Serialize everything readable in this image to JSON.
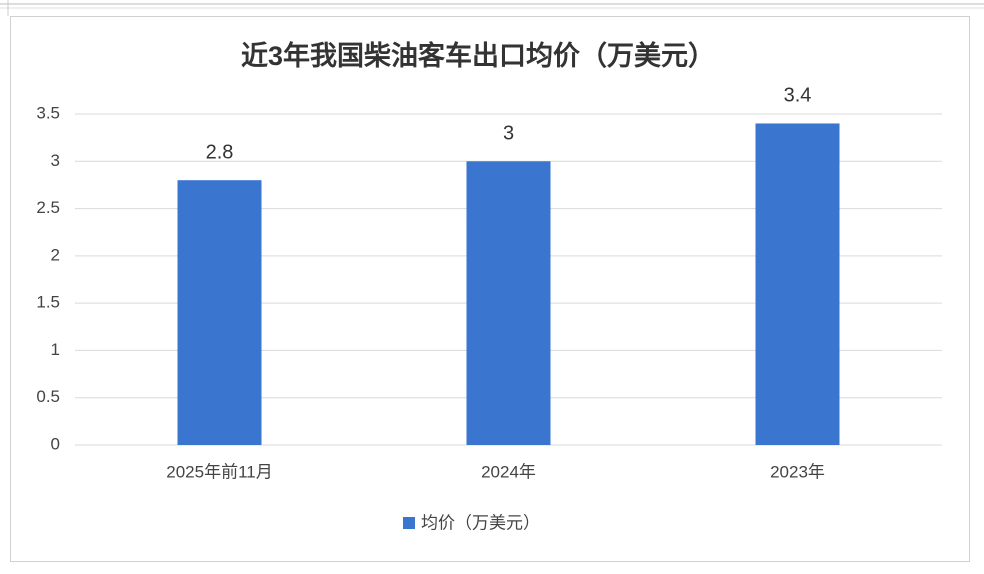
{
  "chart_data": {
    "type": "bar",
    "title": "近3年我国柴油客车出口均价（万美元）",
    "categories": [
      "2025年前11月",
      "2024年",
      "2023年"
    ],
    "series": [
      {
        "name": "均价（万美元）",
        "color": "#3a75cf",
        "values": [
          2.8,
          3,
          3.4
        ]
      }
    ],
    "ylim": [
      0,
      3.5
    ],
    "yticks": [
      0,
      0.5,
      1,
      1.5,
      2,
      2.5,
      3,
      3.5
    ],
    "grid": true,
    "legend": "bottom"
  }
}
